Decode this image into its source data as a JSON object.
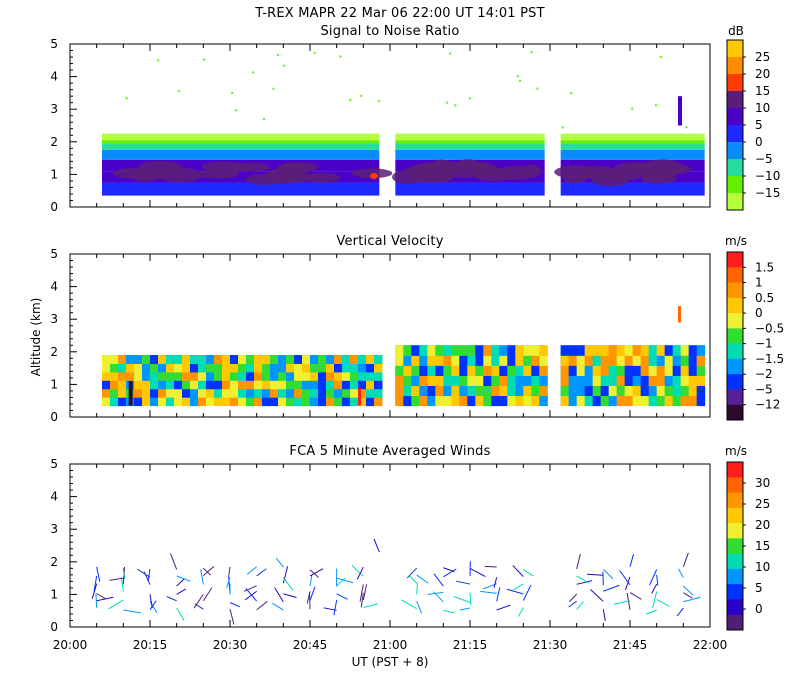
{
  "header": {
    "line1": "T-REX   MAPR 22 Mar 06   22:00 UT   14:01   PST",
    "ylabel": "Altitude (km)",
    "xlabel": "UT  (PST + 8)"
  },
  "chart_data": [
    {
      "type": "heatmap",
      "title": "Signal to Noise Ratio",
      "units": "dB",
      "xlim": [
        "20:00",
        "22:00"
      ],
      "ylim": [
        0,
        5
      ],
      "yticks": [
        "0",
        "1",
        "2",
        "3",
        "4",
        "5"
      ],
      "data_gaps_ut": [
        [
          "20:58",
          "21:01"
        ],
        [
          "21:29",
          "21:32"
        ]
      ],
      "colorbar": {
        "labels": [
          "25",
          "20",
          "15",
          "10",
          "5",
          "0",
          "−5",
          "−10",
          "−15"
        ],
        "colors": [
          "#ffc800",
          "#ff8c00",
          "#ff3c00",
          "#5a1e78",
          "#4b00c8",
          "#1e28ff",
          "#0a8cff",
          "#28dca0",
          "#64f000",
          "#b4ff3c"
        ]
      },
      "profile": [
        {
          "alt_km": 0.4,
          "level": "−5"
        },
        {
          "alt_km": 0.9,
          "level": "10"
        },
        {
          "alt_km": 1.3,
          "level": "5"
        },
        {
          "alt_km": 1.7,
          "level": "0"
        },
        {
          "alt_km": 2.0,
          "level": "−10"
        },
        {
          "alt_km": 2.2,
          "level": "−15"
        }
      ]
    },
    {
      "type": "heatmap",
      "title": "Vertical Velocity",
      "units": "m/s",
      "xlim": [
        "20:00",
        "22:00"
      ],
      "ylim": [
        0,
        5
      ],
      "yticks": [
        "0",
        "1",
        "2",
        "3",
        "4",
        "5"
      ],
      "colorbar": {
        "labels": [
          "1.5",
          "1",
          "0.5",
          "0",
          "−0.5",
          "−1",
          "−1.5",
          "−2",
          "−5",
          "−12"
        ],
        "colors": [
          "#ff1e1e",
          "#ff6400",
          "#ff9600",
          "#ffc800",
          "#f0f032",
          "#32dc32",
          "#00dcb4",
          "#0096ff",
          "#0032ff",
          "#5a1e96",
          "#2d0a28"
        ]
      }
    },
    {
      "type": "scatter",
      "title": "FCA 5 Minute Averaged Winds",
      "units": "m/s",
      "xlim": [
        "20:00",
        "22:00"
      ],
      "ylim": [
        0,
        5
      ],
      "yticks": [
        "0",
        "1",
        "2",
        "3",
        "4",
        "5"
      ],
      "xticks": [
        "20:00",
        "20:15",
        "20:30",
        "20:45",
        "21:00",
        "21:15",
        "21:30",
        "21:45",
        "22:00"
      ],
      "colorbar": {
        "labels": [
          "30",
          "25",
          "20",
          "15",
          "10",
          "5",
          "0"
        ],
        "colors": [
          "#ff1e1e",
          "#ff6400",
          "#ff9600",
          "#ffc800",
          "#f0f032",
          "#32dc32",
          "#00dcb4",
          "#0096ff",
          "#0032ff",
          "#2800c8",
          "#501e78"
        ]
      }
    }
  ]
}
